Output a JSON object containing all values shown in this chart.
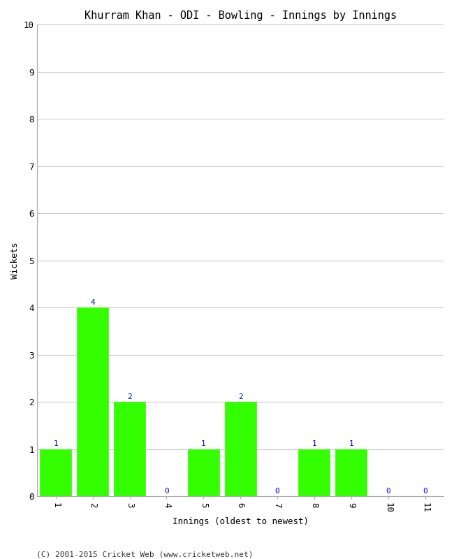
{
  "title": "Khurram Khan - ODI - Bowling - Innings by Innings",
  "xlabel": "Innings (oldest to newest)",
  "ylabel": "Wickets",
  "categories": [
    1,
    2,
    3,
    4,
    5,
    6,
    7,
    8,
    9,
    10,
    11
  ],
  "values": [
    1,
    4,
    2,
    0,
    1,
    2,
    0,
    1,
    1,
    0,
    0
  ],
  "bar_color": "#33ff00",
  "bar_edge_color": "#33ff00",
  "label_color": "#0000cc",
  "ylim": [
    0,
    10
  ],
  "yticks": [
    0,
    1,
    2,
    3,
    4,
    5,
    6,
    7,
    8,
    9,
    10
  ],
  "background_color": "#ffffff",
  "grid_color": "#cccccc",
  "title_fontsize": 11,
  "axis_label_fontsize": 9,
  "tick_fontsize": 9,
  "label_fontsize": 8,
  "footer": "(C) 2001-2015 Cricket Web (www.cricketweb.net)"
}
